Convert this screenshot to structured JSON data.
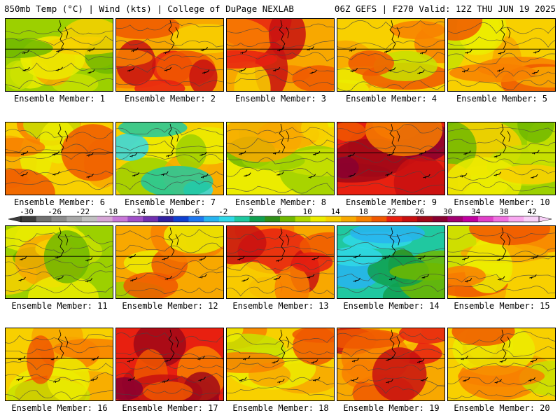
{
  "header": {
    "left": "850mb Temp (°C) | Wind (kts) | College of DuPage NEXLAB",
    "right": "06Z GEFS | F270 Valid: 12Z THU JUN 19 2025"
  },
  "members": [
    {
      "label": "Ensemble Member: 1",
      "theme": "moderate"
    },
    {
      "label": "Ensemble Member: 2",
      "theme": "hot"
    },
    {
      "label": "Ensemble Member: 3",
      "theme": "hot"
    },
    {
      "label": "Ensemble Member: 4",
      "theme": "warm"
    },
    {
      "label": "Ensemble Member: 5",
      "theme": "warm"
    },
    {
      "label": "Ensemble Member: 6",
      "theme": "warm"
    },
    {
      "label": "Ensemble Member: 7",
      "theme": "cool"
    },
    {
      "label": "Ensemble Member: 8",
      "theme": "low"
    },
    {
      "label": "Ensemble Member: 9",
      "theme": "veryhot"
    },
    {
      "label": "Ensemble Member: 10",
      "theme": "moderate"
    },
    {
      "label": "Ensemble Member: 11",
      "theme": "moderate"
    },
    {
      "label": "Ensemble Member: 12",
      "theme": "west"
    },
    {
      "label": "Ensemble Member: 13",
      "theme": "hot"
    },
    {
      "label": "Ensemble Member: 14",
      "theme": "cold"
    },
    {
      "label": "Ensemble Member: 15",
      "theme": "warm"
    },
    {
      "label": "Ensemble Member: 16",
      "theme": "warm"
    },
    {
      "label": "Ensemble Member: 17",
      "theme": "veryhot"
    },
    {
      "label": "Ensemble Member: 18",
      "theme": "warm"
    },
    {
      "label": "Ensemble Member: 19",
      "theme": "hot"
    },
    {
      "label": "Ensemble Member: 20",
      "theme": "warm"
    }
  ],
  "colorbar": {
    "labels": [
      "-30",
      "-26",
      "-22",
      "-18",
      "-14",
      "-10",
      "-6",
      "-2",
      "2",
      "6",
      "10",
      "14",
      "18",
      "22",
      "26",
      "30",
      "34",
      "38",
      "42"
    ],
    "colors": [
      "#3c3c3c",
      "#707070",
      "#8c8c8c",
      "#a8a8a8",
      "#c0c0c0",
      "#d6a6d6",
      "#c878d8",
      "#a050c8",
      "#7030b0",
      "#3020a0",
      "#1040d0",
      "#1e78f0",
      "#28b4f0",
      "#30d8e8",
      "#20c8a0",
      "#10a050",
      "#309018",
      "#70b800",
      "#b0d800",
      "#ecec00",
      "#f8d000",
      "#f8a800",
      "#f88000",
      "#f05800",
      "#e82010",
      "#c81010",
      "#a00818",
      "#880030",
      "#a00070",
      "#c000a0",
      "#e040c8",
      "#f070e0",
      "#f8a8f0",
      "#f8d0f8"
    ]
  }
}
